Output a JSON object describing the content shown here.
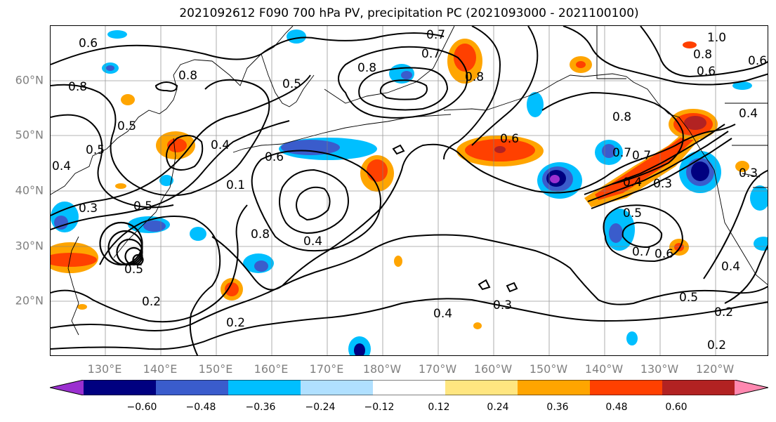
{
  "title": "2021092612 F090 700 hPa PV, precipitation PC (2021093000 - 2021100100)",
  "lat_labels": [
    "60°N",
    "50°N",
    "40°N",
    "30°N",
    "20°N"
  ],
  "lon_labels": [
    "130°E",
    "140°E",
    "150°E",
    "160°E",
    "170°E",
    "180°W",
    "170°W",
    "160°W",
    "150°W",
    "140°W",
    "130°W",
    "120°W"
  ],
  "colorbar": {
    "tick_labels": [
      "−0.60",
      "−0.48",
      "−0.36",
      "−0.24",
      "−0.12",
      "0.12",
      "0.24",
      "0.36",
      "0.48",
      "0.60"
    ],
    "bins": [
      {
        "color": "#9b30d0"
      },
      {
        "color": "#000080"
      },
      {
        "color": "#3a5ccc"
      },
      {
        "color": "#00bfff"
      },
      {
        "color": "#b0e0ff"
      },
      {
        "color": "#ffffff"
      },
      {
        "color": "#ffe680"
      },
      {
        "color": "#ffa500"
      },
      {
        "color": "#ff4000"
      },
      {
        "color": "#b22222"
      },
      {
        "color": "#ff88b0"
      }
    ]
  },
  "contour_labels": [
    {
      "text": "0.6"
    },
    {
      "text": "0.8"
    },
    {
      "text": "0.5"
    },
    {
      "text": "0.4"
    },
    {
      "text": "0.5"
    },
    {
      "text": "0.3"
    },
    {
      "text": "0.5"
    },
    {
      "text": "0.8"
    },
    {
      "text": "0.4"
    },
    {
      "text": "0.5"
    },
    {
      "text": "0.6"
    },
    {
      "text": "0.7"
    },
    {
      "text": "0.8"
    },
    {
      "text": "0.4"
    },
    {
      "text": "0.2"
    },
    {
      "text": "0.2"
    },
    {
      "text": "0.6"
    },
    {
      "text": "0.8"
    },
    {
      "text": "0.7"
    },
    {
      "text": "0.8"
    },
    {
      "text": "0.5"
    },
    {
      "text": "0.1"
    },
    {
      "text": "0.7"
    },
    {
      "text": "0.6"
    },
    {
      "text": "0.4"
    },
    {
      "text": "0.3"
    },
    {
      "text": "0.3"
    },
    {
      "text": "0.7"
    },
    {
      "text": "0.4"
    },
    {
      "text": "0.8"
    },
    {
      "text": "1.0"
    },
    {
      "text": "0.8"
    },
    {
      "text": "0.6"
    },
    {
      "text": "0.5"
    },
    {
      "text": "0.7"
    },
    {
      "text": "0.6"
    },
    {
      "text": "0.4"
    },
    {
      "text": "0.5"
    },
    {
      "text": "0.2"
    },
    {
      "text": "0.2"
    },
    {
      "text": "0.4"
    },
    {
      "text": "0.3"
    }
  ]
}
